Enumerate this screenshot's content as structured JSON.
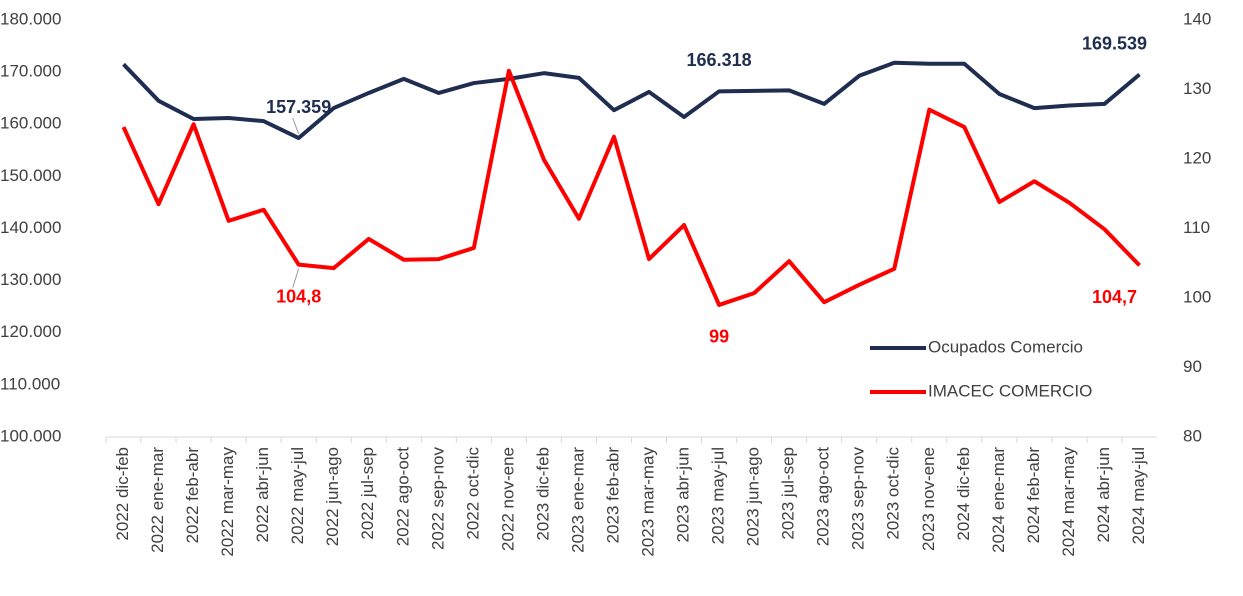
{
  "chart_data": {
    "type": "line",
    "categories": [
      "2022 dic-feb",
      "2022 ene-mar",
      "2022 feb-abr",
      "2022 mar-may",
      "2022 abr-jun",
      "2022 may-jul",
      "2022 jun-ago",
      "2022 jul-sep",
      "2022 ago-oct",
      "2022 sep-nov",
      "2022 oct-dic",
      "2022 nov-ene",
      "2023 dic-feb",
      "2023 ene-mar",
      "2023 feb-abr",
      "2023 mar-may",
      "2023 abr-jun",
      "2023 may-jul",
      "2023 jun-ago",
      "2023 jul-sep",
      "2023 ago-oct",
      "2023 sep-nov",
      "2023 oct-dic",
      "2023 nov-ene",
      "2024 dic-feb",
      "2024 ene-mar",
      "2024 feb-abr",
      "2024 mar-may",
      "2024 abr-jun",
      "2024 may-jul"
    ],
    "series": [
      {
        "name": "Ocupados Comercio",
        "color": "#1f2d50",
        "values": [
          171500,
          164500,
          161000,
          161200,
          160600,
          157359,
          163100,
          166000,
          168700,
          166000,
          167900,
          168700,
          169800,
          168900,
          162700,
          166200,
          161400,
          166318,
          166400,
          166500,
          163900,
          169300,
          171800,
          171600,
          171600,
          165800,
          163100,
          163600,
          163900,
          169539
        ],
        "value_labels": [
          null,
          null,
          null,
          null,
          null,
          "157.359",
          null,
          null,
          null,
          null,
          null,
          null,
          null,
          null,
          null,
          null,
          null,
          "166.318",
          null,
          null,
          null,
          null,
          null,
          null,
          null,
          null,
          null,
          null,
          null,
          "169.539"
        ]
      },
      {
        "name": "IMACEC COMERCIO",
        "color": "#ff0000",
        "axis": "y2",
        "values": [
          124.6,
          113.5,
          125.0,
          111.1,
          112.7,
          104.8,
          104.3,
          108.5,
          105.5,
          105.6,
          107.2,
          132.7,
          119.9,
          111.4,
          123.2,
          105.6,
          110.5,
          99,
          100.7,
          105.3,
          99.4,
          101.9,
          104.2,
          127.1,
          124.6,
          113.8,
          116.8,
          113.7,
          109.9,
          104.7
        ],
        "value_labels": [
          null,
          null,
          null,
          null,
          null,
          "104,8",
          null,
          null,
          null,
          null,
          null,
          null,
          null,
          null,
          null,
          null,
          null,
          "99",
          null,
          null,
          null,
          null,
          null,
          null,
          null,
          null,
          null,
          null,
          null,
          "104,7"
        ]
      }
    ],
    "ylim": [
      100000,
      180000
    ],
    "yticks": [
      {
        "value": 100000,
        "label": "100.000"
      },
      {
        "value": 110000,
        "label": "110.000"
      },
      {
        "value": 120000,
        "label": "120.000"
      },
      {
        "value": 130000,
        "label": "130.000"
      },
      {
        "value": 140000,
        "label": "140.000"
      },
      {
        "value": 150000,
        "label": "150.000"
      },
      {
        "value": 160000,
        "label": "160.000"
      },
      {
        "value": 170000,
        "label": "170.000"
      },
      {
        "value": 180000,
        "label": "180.000"
      }
    ],
    "y2lim": [
      80,
      140
    ],
    "y2ticks": [
      80,
      90,
      100,
      110,
      120,
      130,
      140
    ],
    "legend": "lower-right",
    "grid": false
  }
}
